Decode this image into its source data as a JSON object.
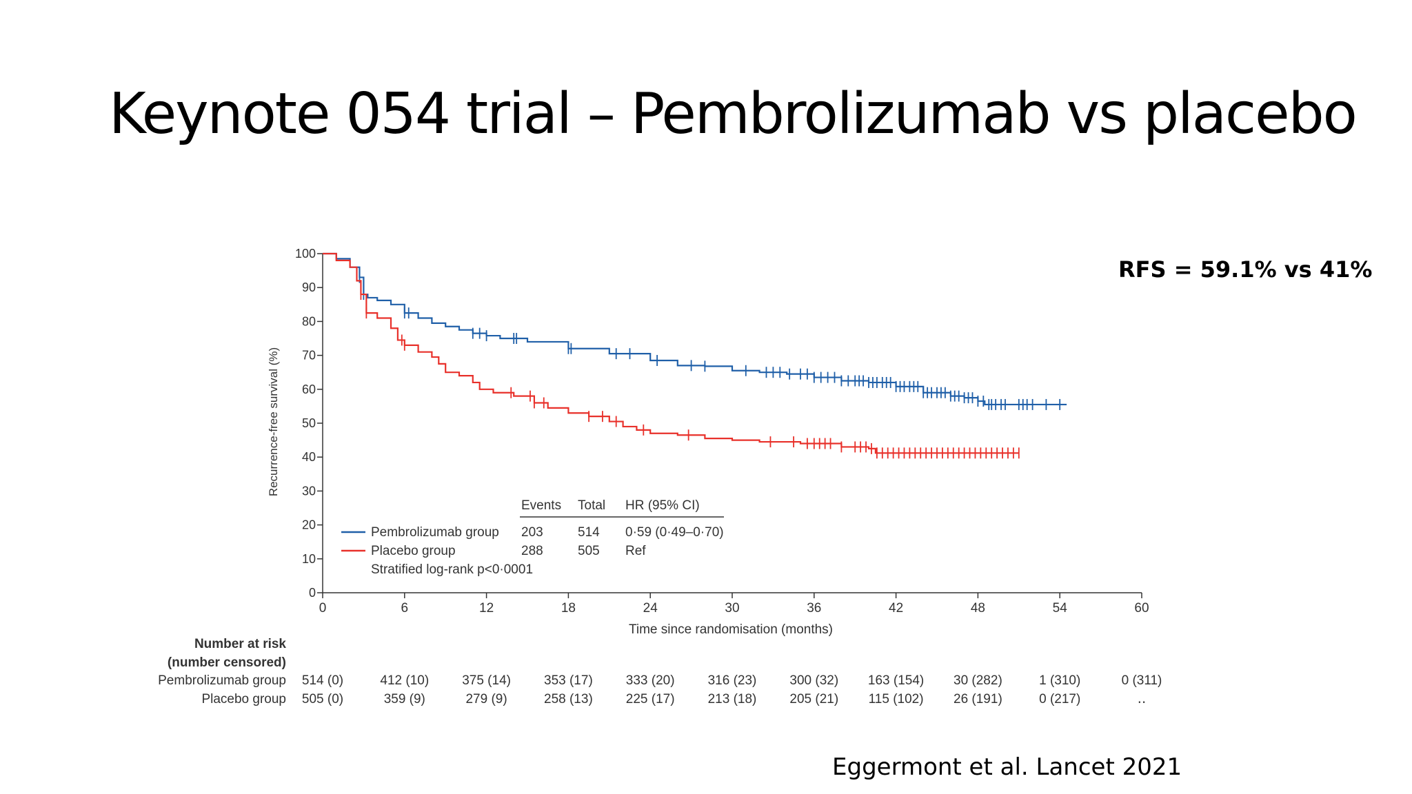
{
  "slide": {
    "title": "Keynote 054 trial – Pembrolizumab vs placebo",
    "rfs_note": "RFS = 59.1% vs 41%",
    "citation": "Eggermont et al. Lancet 2021"
  },
  "chart_data": {
    "type": "line",
    "xlabel": "Time since randomisation (months)",
    "ylabel": "Recurrence-free survival (%)",
    "xlim": [
      0,
      60
    ],
    "ylim": [
      0,
      100
    ],
    "x_ticks": [
      0,
      6,
      12,
      18,
      24,
      30,
      36,
      42,
      48,
      54,
      60
    ],
    "y_ticks": [
      0,
      10,
      20,
      30,
      40,
      50,
      60,
      70,
      80,
      90,
      100
    ],
    "grid": false,
    "colors": {
      "pembrolizumab": "#1f5fa8",
      "placebo": "#e8302a"
    },
    "series": [
      {
        "name": "Pembrolizumab group",
        "step_points": [
          [
            0,
            100
          ],
          [
            1,
            98.5
          ],
          [
            2,
            96
          ],
          [
            2.7,
            93
          ],
          [
            3,
            88
          ],
          [
            3.3,
            87
          ],
          [
            4,
            86.2
          ],
          [
            5,
            85
          ],
          [
            6,
            82.5
          ],
          [
            7,
            81
          ],
          [
            8,
            79.5
          ],
          [
            9,
            78.5
          ],
          [
            10,
            77.5
          ],
          [
            11,
            76.5
          ],
          [
            12,
            75.8
          ],
          [
            13,
            75
          ],
          [
            15,
            74
          ],
          [
            18,
            72
          ],
          [
            21,
            70.5
          ],
          [
            24,
            68.5
          ],
          [
            26,
            67
          ],
          [
            28,
            66.8
          ],
          [
            30,
            65.5
          ],
          [
            32,
            65
          ],
          [
            34,
            64.5
          ],
          [
            36,
            63.5
          ],
          [
            38,
            62.5
          ],
          [
            40,
            62
          ],
          [
            42,
            60.8
          ],
          [
            44,
            59
          ],
          [
            46,
            58
          ],
          [
            47,
            57.5
          ],
          [
            48,
            56.5
          ],
          [
            48.5,
            55.5
          ],
          [
            50,
            55.5
          ],
          [
            52,
            55.5
          ],
          [
            54,
            55.5
          ],
          [
            54.5,
            55.5
          ]
        ],
        "censor_x": [
          2.7,
          3,
          6,
          6.3,
          11,
          11.5,
          12,
          14,
          14.2,
          18,
          18.2,
          21.5,
          22.5,
          24.5,
          27,
          28,
          31,
          32.5,
          33,
          33.5,
          34.2,
          35,
          35.5,
          36,
          36.5,
          37,
          37.5,
          38,
          38.5,
          39,
          39.3,
          39.6,
          40,
          40.3,
          40.6,
          41,
          41.3,
          41.6,
          42,
          42.3,
          42.6,
          43,
          43.3,
          43.6,
          44,
          44.3,
          44.6,
          45,
          45.3,
          45.6,
          46,
          46.3,
          46.6,
          47,
          47.3,
          47.6,
          48,
          48.4,
          48.8,
          49,
          49.3,
          49.7,
          50,
          51,
          51.3,
          51.6,
          52,
          53,
          54
        ]
      },
      {
        "name": "Placebo group",
        "step_points": [
          [
            0,
            100
          ],
          [
            1,
            98
          ],
          [
            2,
            96
          ],
          [
            2.5,
            92
          ],
          [
            2.8,
            88
          ],
          [
            3.2,
            82.5
          ],
          [
            4,
            81
          ],
          [
            5,
            78
          ],
          [
            5.5,
            74.5
          ],
          [
            6,
            73
          ],
          [
            7,
            71
          ],
          [
            8,
            69.5
          ],
          [
            8.5,
            67.5
          ],
          [
            9,
            65
          ],
          [
            10,
            64
          ],
          [
            11,
            62
          ],
          [
            11.5,
            60
          ],
          [
            12.5,
            59
          ],
          [
            14,
            58
          ],
          [
            15.5,
            56
          ],
          [
            16.5,
            54.5
          ],
          [
            18,
            53
          ],
          [
            19.5,
            52
          ],
          [
            21,
            50.5
          ],
          [
            22,
            49
          ],
          [
            23,
            48
          ],
          [
            24,
            47
          ],
          [
            26,
            46.5
          ],
          [
            28,
            45.5
          ],
          [
            30,
            45
          ],
          [
            32,
            44.5
          ],
          [
            35,
            44
          ],
          [
            38,
            43
          ],
          [
            40,
            42.5
          ],
          [
            40.5,
            41.2
          ],
          [
            42,
            41.2
          ],
          [
            45,
            41.2
          ],
          [
            48,
            41.2
          ],
          [
            51,
            41.2
          ]
        ],
        "censor_x": [
          2.8,
          3.2,
          5.8,
          6,
          13.8,
          15.2,
          15.5,
          16.2,
          19.5,
          20.5,
          21.5,
          23.5,
          26.8,
          32.8,
          34.5,
          35.5,
          36,
          36.4,
          36.8,
          37.2,
          38,
          39,
          39.4,
          39.8,
          40.2,
          40.6,
          41,
          41.4,
          41.8,
          42.2,
          42.6,
          43,
          43.4,
          43.8,
          44.2,
          44.6,
          45,
          45.4,
          45.8,
          46.2,
          46.6,
          47,
          47.4,
          47.8,
          48.2,
          48.6,
          49,
          49.4,
          49.8,
          50.2,
          50.6,
          51
        ]
      }
    ],
    "legend_table": {
      "headers": {
        "events": "Events",
        "total": "Total",
        "hr": "HR (95% CI)"
      },
      "rows": [
        {
          "label": "Pembrolizumab group",
          "events": "203",
          "total": "514",
          "hr": "0·59 (0·49–0·70)"
        },
        {
          "label": "Placebo group",
          "events": "288",
          "total": "505",
          "hr": "Ref"
        }
      ],
      "note": "Stratified log-rank p<0·0001",
      "placement": "bottom-left"
    },
    "risk_table": {
      "title_line1": "Number at risk",
      "title_line2": "(number censored)",
      "rows": [
        {
          "label": "Pembrolizumab group",
          "values": [
            "514 (0)",
            "412 (10)",
            "375 (14)",
            "353 (17)",
            "333 (20)",
            "316 (23)",
            "300 (32)",
            "163 (154)",
            "30 (282)",
            "1 (310)",
            "0 (311)"
          ]
        },
        {
          "label": "Placebo group",
          "values": [
            "505 (0)",
            "359 (9)",
            "279 (9)",
            "258 (13)",
            "225 (17)",
            "213 (18)",
            "205 (21)",
            "115 (102)",
            "26 (191)",
            "0 (217)",
            "‥"
          ]
        }
      ]
    }
  }
}
